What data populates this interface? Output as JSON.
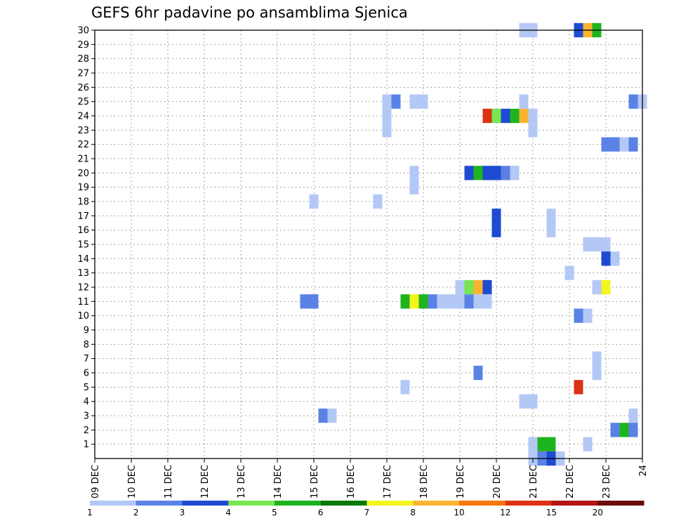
{
  "chart_data": {
    "type": "heatmap",
    "title": "GEFS 6hr padavine po ansamblima Sjenica",
    "x_tick_labels": [
      "09 DEC",
      "10 DEC",
      "11 DEC",
      "12 DEC",
      "13 DEC",
      "14 DEC",
      "15 DEC",
      "16 DEC",
      "17 DEC",
      "18 DEC",
      "19 DEC",
      "20 DEC",
      "21 DEC",
      "22 DEC",
      "23 DEC",
      "24"
    ],
    "x_range_days": [
      0,
      15
    ],
    "y_tick_labels": [
      "1",
      "2",
      "3",
      "4",
      "5",
      "6",
      "7",
      "8",
      "9",
      "10",
      "11",
      "12",
      "13",
      "14",
      "15",
      "16",
      "17",
      "18",
      "19",
      "20",
      "21",
      "22",
      "23",
      "24",
      "25",
      "26",
      "27",
      "28",
      "29",
      "30"
    ],
    "y_range": [
      0,
      30
    ],
    "grid": true,
    "legend": {
      "placement": "bottom",
      "colors": [
        "#b4c8f5",
        "#5a82e6",
        "#1e4bd2",
        "#78e650",
        "#1eb41e",
        "#0a780a",
        "#f5f51e",
        "#fab432",
        "#f5780a",
        "#dc3214",
        "#b41414",
        "#6e0a0a"
      ],
      "labels": [
        "1",
        "2",
        "3",
        "4",
        "5",
        "6",
        "7",
        "8",
        "10",
        "12",
        "15",
        "20"
      ]
    },
    "cells": [
      {
        "member": 30,
        "day": 11.75,
        "level": 1
      },
      {
        "member": 30,
        "day": 12.0,
        "level": 1
      },
      {
        "member": 30,
        "day": 13.25,
        "level": 3
      },
      {
        "member": 30,
        "day": 13.5,
        "level": 8
      },
      {
        "member": 30,
        "day": 13.75,
        "level": 5
      },
      {
        "member": 25,
        "day": 8.0,
        "level": 1
      },
      {
        "member": 25,
        "day": 8.25,
        "level": 2
      },
      {
        "member": 25,
        "day": 8.75,
        "level": 1
      },
      {
        "member": 25,
        "day": 9.0,
        "level": 1
      },
      {
        "member": 25,
        "day": 11.75,
        "level": 1
      },
      {
        "member": 25,
        "day": 14.75,
        "level": 2
      },
      {
        "member": 25,
        "day": 15.0,
        "level": 1
      },
      {
        "member": 24,
        "day": 8.0,
        "level": 1
      },
      {
        "member": 24,
        "day": 10.75,
        "level": 10
      },
      {
        "member": 24,
        "day": 11.0,
        "level": 4
      },
      {
        "member": 24,
        "day": 11.25,
        "level": 3
      },
      {
        "member": 24,
        "day": 11.5,
        "level": 5
      },
      {
        "member": 24,
        "day": 11.75,
        "level": 8
      },
      {
        "member": 24,
        "day": 12.0,
        "level": 1
      },
      {
        "member": 23,
        "day": 8.0,
        "level": 1
      },
      {
        "member": 23,
        "day": 12.0,
        "level": 1
      },
      {
        "member": 22,
        "day": 14.0,
        "level": 2
      },
      {
        "member": 22,
        "day": 14.25,
        "level": 2
      },
      {
        "member": 22,
        "day": 14.5,
        "level": 1
      },
      {
        "member": 22,
        "day": 14.75,
        "level": 2
      },
      {
        "member": 20,
        "day": 8.75,
        "level": 1
      },
      {
        "member": 20,
        "day": 10.25,
        "level": 3
      },
      {
        "member": 20,
        "day": 10.5,
        "level": 5
      },
      {
        "member": 20,
        "day": 10.75,
        "level": 3
      },
      {
        "member": 20,
        "day": 11.0,
        "level": 3
      },
      {
        "member": 20,
        "day": 11.25,
        "level": 2
      },
      {
        "member": 20,
        "day": 11.5,
        "level": 1
      },
      {
        "member": 19,
        "day": 8.75,
        "level": 1
      },
      {
        "member": 18,
        "day": 6.0,
        "level": 1
      },
      {
        "member": 18,
        "day": 7.75,
        "level": 1
      },
      {
        "member": 17,
        "day": 11.0,
        "level": 3
      },
      {
        "member": 17,
        "day": 12.5,
        "level": 1
      },
      {
        "member": 16,
        "day": 11.0,
        "level": 3
      },
      {
        "member": 16,
        "day": 12.5,
        "level": 1
      },
      {
        "member": 15,
        "day": 13.5,
        "level": 1
      },
      {
        "member": 15,
        "day": 13.75,
        "level": 1
      },
      {
        "member": 15,
        "day": 14.0,
        "level": 1
      },
      {
        "member": 14,
        "day": 14.0,
        "level": 3
      },
      {
        "member": 14,
        "day": 14.25,
        "level": 1
      },
      {
        "member": 13,
        "day": 13.0,
        "level": 1
      },
      {
        "member": 12,
        "day": 10.0,
        "level": 1
      },
      {
        "member": 12,
        "day": 10.25,
        "level": 4
      },
      {
        "member": 12,
        "day": 10.5,
        "level": 8
      },
      {
        "member": 12,
        "day": 10.75,
        "level": 3
      },
      {
        "member": 12,
        "day": 13.75,
        "level": 1
      },
      {
        "member": 12,
        "day": 14.0,
        "level": 7
      },
      {
        "member": 11,
        "day": 5.75,
        "level": 2
      },
      {
        "member": 11,
        "day": 6.0,
        "level": 2
      },
      {
        "member": 11,
        "day": 8.5,
        "level": 5
      },
      {
        "member": 11,
        "day": 8.75,
        "level": 7
      },
      {
        "member": 11,
        "day": 9.0,
        "level": 5
      },
      {
        "member": 11,
        "day": 9.25,
        "level": 2
      },
      {
        "member": 11,
        "day": 9.5,
        "level": 1
      },
      {
        "member": 11,
        "day": 9.75,
        "level": 1
      },
      {
        "member": 11,
        "day": 10.0,
        "level": 1
      },
      {
        "member": 11,
        "day": 10.25,
        "level": 2
      },
      {
        "member": 11,
        "day": 10.5,
        "level": 1
      },
      {
        "member": 11,
        "day": 10.75,
        "level": 1
      },
      {
        "member": 10,
        "day": 13.25,
        "level": 2
      },
      {
        "member": 10,
        "day": 13.5,
        "level": 1
      },
      {
        "member": 7,
        "day": 13.75,
        "level": 1
      },
      {
        "member": 6,
        "day": 10.5,
        "level": 2
      },
      {
        "member": 6,
        "day": 13.75,
        "level": 1
      },
      {
        "member": 5,
        "day": 8.5,
        "level": 1
      },
      {
        "member": 5,
        "day": 13.25,
        "level": 10
      },
      {
        "member": 4,
        "day": 11.75,
        "level": 1
      },
      {
        "member": 4,
        "day": 12.0,
        "level": 1
      },
      {
        "member": 3,
        "day": 6.25,
        "level": 2
      },
      {
        "member": 3,
        "day": 6.5,
        "level": 1
      },
      {
        "member": 3,
        "day": 14.75,
        "level": 1
      },
      {
        "member": 2,
        "day": 14.25,
        "level": 2
      },
      {
        "member": 2,
        "day": 14.5,
        "level": 5
      },
      {
        "member": 2,
        "day": 14.75,
        "level": 2
      },
      {
        "member": 1,
        "day": 12.0,
        "level": 1
      },
      {
        "member": 1,
        "day": 12.25,
        "level": 5
      },
      {
        "member": 1,
        "day": 12.5,
        "level": 5
      },
      {
        "member": 1,
        "day": 13.5,
        "level": 1
      },
      {
        "member": 0,
        "day": 12.0,
        "level": 1
      },
      {
        "member": 0,
        "day": 12.25,
        "level": 2
      },
      {
        "member": 0,
        "day": 12.5,
        "level": 3
      },
      {
        "member": 0,
        "day": 12.75,
        "level": 1
      }
    ]
  }
}
